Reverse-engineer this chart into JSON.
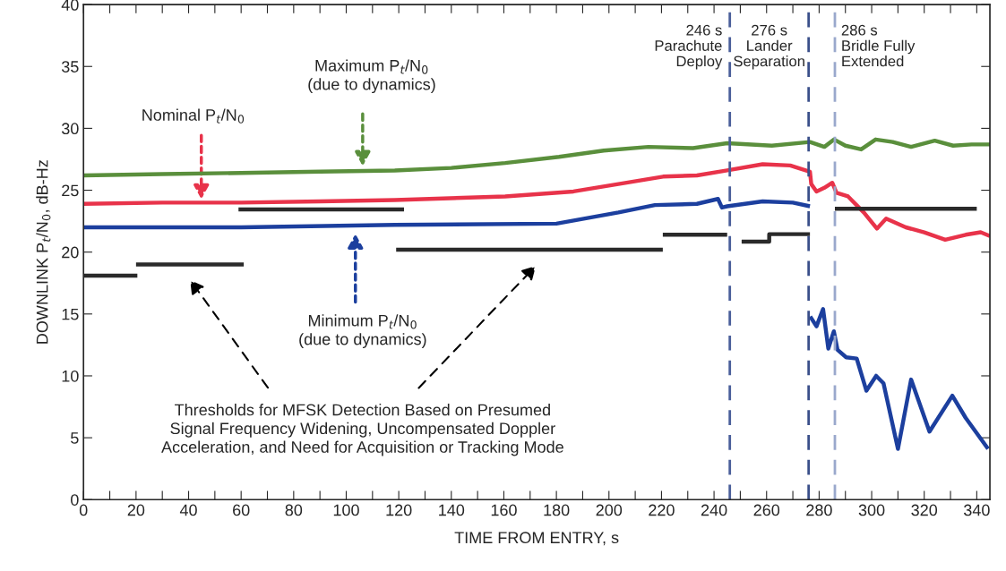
{
  "chart_data": {
    "type": "line",
    "xlabel": "TIME FROM ENTRY, s",
    "ylabel": "DOWNLINK P$_{t}$/N$_{0}$, dB-Hz",
    "xlim": [
      0,
      345
    ],
    "ylim": [
      0,
      40
    ],
    "xticks": [
      0,
      {
        "value": 10,
        "label": null
      },
      20,
      {
        "value": 30,
        "label": null
      },
      40,
      {
        "value": 50,
        "label": null
      },
      60,
      {
        "value": 70,
        "label": null
      },
      80,
      {
        "value": 90,
        "label": null
      },
      100,
      {
        "value": 110,
        "label": null
      },
      120,
      {
        "value": 130,
        "label": null
      },
      140,
      {
        "value": 150,
        "label": null
      },
      160,
      {
        "value": 170,
        "label": null
      },
      180,
      {
        "value": 190,
        "label": null
      },
      200,
      {
        "value": 210,
        "label": null
      },
      220,
      {
        "value": 230,
        "label": null
      },
      240,
      {
        "value": 250,
        "label": null
      },
      260,
      {
        "value": 270,
        "label": null
      },
      280,
      {
        "value": 290,
        "label": null
      },
      300,
      {
        "value": 310,
        "label": null
      },
      320,
      {
        "value": 330,
        "label": null
      },
      340
    ],
    "yticks": [
      0,
      5,
      10,
      15,
      20,
      25,
      30,
      35,
      40
    ],
    "grid": false,
    "legend": false,
    "marker": "none",
    "line_style": "solid",
    "series": [
      {
        "color": "#5a8f3c",
        "x": [
          0,
          30,
          60,
          90,
          118.5,
          140,
          160.5,
          181,
          198,
          215,
          232,
          245,
          262,
          276.5,
          282,
          285.7,
          290,
          296,
          301.5,
          308,
          315,
          324,
          331,
          338,
          345
        ],
        "values": [
          26.2,
          26.3,
          26.4,
          26.5,
          26.6,
          26.8,
          27.2,
          27.7,
          28.2,
          28.5,
          28.4,
          28.8,
          28.6,
          28.9,
          28.5,
          29.1,
          28.6,
          28.3,
          29.1,
          28.9,
          28.5,
          29.0,
          28.6,
          28.7,
          28.7
        ]
      },
      {
        "color": "#e8334a",
        "x": [
          0,
          30,
          60,
          90,
          118.5,
          160.5,
          186.5,
          203.6,
          220.6,
          233.5,
          245,
          258.5,
          269,
          276.5,
          277,
          279,
          282,
          285,
          286.6,
          291,
          297,
          302,
          305.5,
          313,
          320,
          328,
          335.8,
          341.5,
          345
        ],
        "values": [
          23.9,
          24.0,
          24.0,
          24.1,
          24.2,
          24.5,
          24.9,
          25.5,
          26.1,
          26.2,
          26.6,
          27.1,
          27.0,
          26.5,
          25.5,
          24.9,
          25.2,
          25.6,
          24.8,
          24.5,
          23.2,
          21.9,
          22.7,
          22.0,
          21.6,
          21.0,
          21.4,
          21.6,
          21.3
        ]
      },
      {
        "color": "#1c3f9e",
        "x": [
          0,
          60,
          118.5,
          180,
          203.6,
          217.5,
          233.5,
          241.5,
          243,
          245,
          258.5,
          270,
          276.5
        ],
        "values": [
          22.0,
          22.0,
          22.2,
          22.3,
          23.2,
          23.8,
          23.9,
          24.3,
          23.6,
          23.7,
          24.1,
          24.0,
          23.7
        ]
      },
      {
        "color": "#1c3f9e",
        "x": [
          276.6,
          279,
          281.5,
          283.5,
          285.6,
          287,
          290.3,
          294.3,
          298,
          301.7,
          304.5,
          310,
          315,
          322,
          330.7,
          335.8,
          344.3
        ],
        "values": [
          14.8,
          14.0,
          15.4,
          12.2,
          13.6,
          12.1,
          11.5,
          11.4,
          8.8,
          10.0,
          9.4,
          4.1,
          9.7,
          5.5,
          8.4,
          6.6,
          4.1
        ]
      },
      {
        "color": "#2a2a2a",
        "x": [
          0,
          20.5
        ],
        "values": [
          18.1,
          18.1
        ]
      },
      {
        "color": "#2a2a2a",
        "x": [
          20,
          61
        ],
        "values": [
          19.0,
          19.0
        ]
      },
      {
        "color": "#2a2a2a",
        "x": [
          59,
          122
        ],
        "values": [
          23.45,
          23.45
        ]
      },
      {
        "color": "#2a2a2a",
        "x": [
          119,
          220.5
        ],
        "values": [
          20.2,
          20.2
        ]
      },
      {
        "color": "#2a2a2a",
        "x": [
          220.5,
          245
        ],
        "values": [
          21.4,
          21.4
        ]
      },
      {
        "color": "#2a2a2a",
        "x": [
          250.5,
          261,
          261,
          276.5
        ],
        "values": [
          20.85,
          20.85,
          21.45,
          21.45
        ]
      },
      {
        "color": "#2a2a2a",
        "x": [
          286,
          340
        ],
        "values": [
          23.5,
          23.5
        ]
      }
    ],
    "ref_lines": [
      {
        "axis": "x",
        "value": 246,
        "label": "246 s\nParachute\nDeploy",
        "color": "#4a5f9a",
        "line_style": "dashed"
      },
      {
        "axis": "x",
        "value": 276,
        "label": "276 s\nLander\nSeparation",
        "color": "#3a4f8a",
        "line_style": "dashed"
      },
      {
        "axis": "x",
        "value": 286,
        "label": "286 s\nBridle Fully\nExtended",
        "color": "#9aa8cc",
        "line_style": "dashed"
      }
    ],
    "annotations": [
      "Maximum P$_{t}$/N$_{0}$\n(due to dynamics)",
      "Nominal P$_{t}$/N$_{0}$",
      "Minimum P$_{t}$/N$_{0}$\n(due to dynamics)",
      "Thresholds for MFSK Detection Based on Presumed\nSignal Frequency Widening, Uncompensated Doppler\nAcceleration, and Need for Acquisition or Tracking Mode"
    ]
  }
}
